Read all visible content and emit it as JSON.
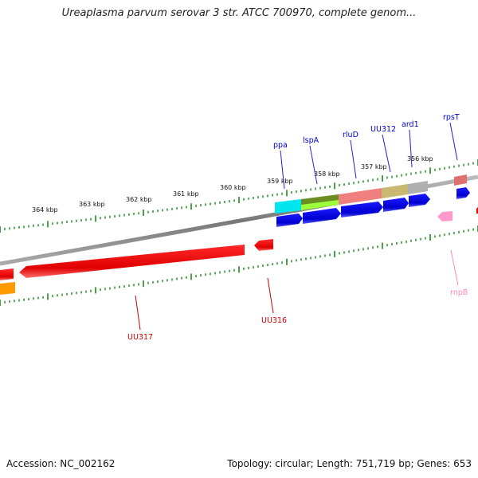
{
  "title": "Ureaplasma parvum serovar 3 str. ATCC 700970, complete genom...",
  "footer": {
    "accession": "Accession: NC_002162",
    "summary": "Topology: circular; Length: 751,719 bp; Genes: 653"
  },
  "scale_labels": [
    "364 kbp",
    "363 kbp",
    "362 kbp",
    "361 kbp",
    "360 kbp",
    "359 kbp",
    "358 kbp",
    "357 kbp",
    "356 kbp"
  ],
  "genes": {
    "forward": [
      {
        "name": "ppa",
        "color": "#0000cc"
      },
      {
        "name": "lspA",
        "color": "#0000cc"
      },
      {
        "name": "rluD",
        "color": "#0000cc"
      },
      {
        "name": "UU312",
        "color": "#0000cc"
      },
      {
        "name": "ard1",
        "color": "#0000cc"
      },
      {
        "name": "rpsT",
        "color": "#0000cc"
      }
    ],
    "reverse": [
      {
        "name": "UU317",
        "color": "#cc0000"
      },
      {
        "name": "UU316",
        "color": "#cc0000"
      },
      {
        "name": "rnpB",
        "color": "#ff88bb"
      }
    ]
  },
  "colors": {
    "backbone": "#888888",
    "tick": "#1a8a1a",
    "forward_cds": "#0000ee",
    "reverse_cds": "#ee0000"
  }
}
